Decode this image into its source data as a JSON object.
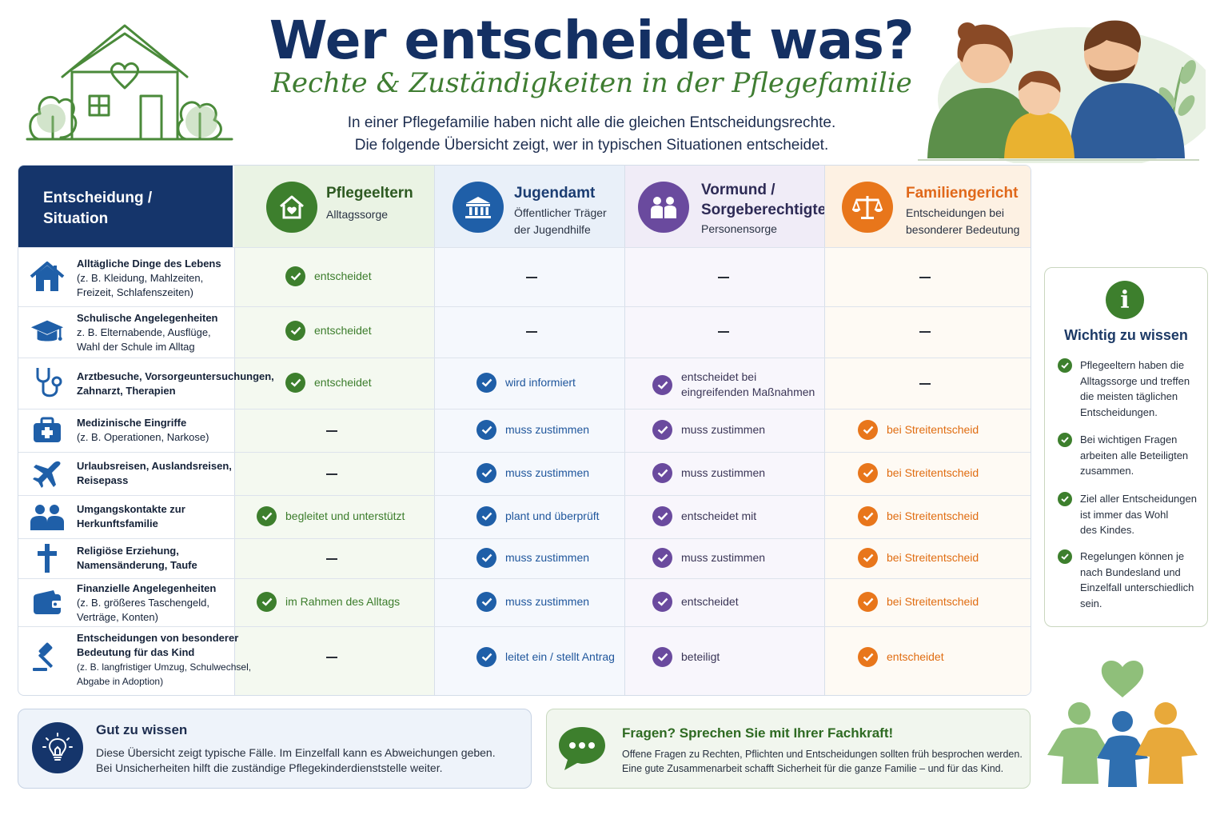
{
  "header": {
    "title": "Wer entscheidet was?",
    "subtitle": "Rechte & Zuständigkeiten in der Pflegefamilie",
    "intro_line1": "In einer Pflegefamilie haben nicht alle die gleichen Entscheidungsrechte.",
    "intro_line2": "Die folgende Übersicht zeigt, wer in typischen Situationen entscheidet."
  },
  "table": {
    "situation_header_line1": "Entscheidung /",
    "situation_header_line2": "Situation",
    "roles": [
      {
        "name": "Pflegeeltern",
        "sub1": "Alltagssorge",
        "sub2": "",
        "icon": "house-heart-icon",
        "color": "#3d7f2d"
      },
      {
        "name": "Jugendamt",
        "sub1": "Öffentlicher Träger",
        "sub2": "der Jugendhilfe",
        "icon": "building-icon",
        "color": "#1f5fa8"
      },
      {
        "name_line1": "Vormund /",
        "name_line2": "Sorgeberechtigte",
        "sub1": "Personensorge",
        "icon": "people-icon",
        "color": "#6a4a9e"
      },
      {
        "name": "Familiengericht",
        "sub1": "Entscheidungen bei",
        "sub2": "besonderer Bedeutung",
        "icon": "scales-icon",
        "color": "#e8761b"
      }
    ],
    "rows": [
      {
        "title": "Alltägliche Dinge des Lebens",
        "detail1": "(z. B. Kleidung, Mahlzeiten,",
        "detail2": "Freizeit, Schlafenszeiten)",
        "icon": "house-icon",
        "cells": [
          "entscheidet",
          "",
          "",
          ""
        ]
      },
      {
        "title": "Schulische Angelegenheiten",
        "detail1": "z. B. Elternabende, Ausflüge,",
        "detail2": "Wahl der Schule im Alltag",
        "icon": "graduation-cap-icon",
        "cells": [
          "entscheidet",
          "",
          "",
          ""
        ]
      },
      {
        "title": "Arztbesuche, Vorsorgeuntersuchungen,",
        "title2": "Zahnarzt, Therapien",
        "icon": "stethoscope-icon",
        "cells": [
          "entscheidet",
          "wird informiert",
          "entscheidet bei|eingreifenden Maßnahmen",
          ""
        ]
      },
      {
        "title": "Medizinische Eingriffe",
        "detail1": "(z. B. Operationen, Narkose)",
        "icon": "medical-bag-icon",
        "cells": [
          "",
          "muss zustimmen",
          "muss zustimmen",
          "bei Streitentscheid"
        ]
      },
      {
        "title": "Urlaubsreisen, Auslandsreisen,",
        "title2": "Reisepass",
        "icon": "airplane-icon",
        "cells": [
          "",
          "muss zustimmen",
          "muss zustimmen",
          "bei Streitentscheid"
        ]
      },
      {
        "title": "Umgangskontakte zur",
        "title2": "Herkunftsfamilie",
        "icon": "family-icon",
        "cells": [
          "begleitet und unterstützt",
          "plant und überprüft",
          "entscheidet mit",
          "bei Streitentscheid"
        ]
      },
      {
        "title": "Religiöse Erziehung,",
        "title2": "Namensänderung, Taufe",
        "icon": "cross-icon",
        "cells": [
          "",
          "muss zustimmen",
          "muss zustimmen",
          "bei Streitentscheid"
        ]
      },
      {
        "title": "Finanzielle Angelegenheiten",
        "detail1": "(z. B. größeres Taschengeld,",
        "detail2": "Verträge, Konten)",
        "icon": "wallet-icon",
        "cells": [
          "im Rahmen des Alltags",
          "muss zustimmen",
          "entscheidet",
          "bei Streitentscheid"
        ]
      },
      {
        "title": "Entscheidungen von besonderer",
        "title2": "Bedeutung für das Kind",
        "detail1": "(z. B. langfristiger Umzug, Schulwechsel,",
        "detail2": "Abgabe in Adoption)",
        "icon": "gavel-icon",
        "cells": [
          "",
          "leitet ein / stellt Antrag",
          "beteiligt",
          "entscheidet"
        ]
      }
    ],
    "empty_marker": "–"
  },
  "info": {
    "title": "Wichtig zu wissen",
    "icon": "info-icon",
    "items": [
      [
        "Pflegeeltern haben die",
        "Alltagssorge und treffen",
        "die meisten täglichen",
        "Entscheidungen."
      ],
      [
        "Bei wichtigen Fragen",
        "arbeiten alle Beteiligten",
        "zusammen."
      ],
      [
        "Ziel aller Entscheidungen",
        "ist immer das Wohl",
        "des Kindes."
      ],
      [
        "Regelungen können je",
        "nach Bundesland und",
        "Einzelfall unterschiedlich",
        "sein."
      ]
    ]
  },
  "gut": {
    "title": "Gut zu wissen",
    "line1": "Diese Übersicht zeigt typische Fälle. Im Einzelfall kann es Abweichungen geben.",
    "line2": "Bei Unsicherheiten hilft die zuständige Pflegekinderdienststelle weiter.",
    "icon": "lightbulb-icon"
  },
  "fragen": {
    "title": "Fragen? Sprechen Sie mit Ihrer Fachkraft!",
    "line1": "Offene Fragen zu Rechten, Pflichten und Entscheidungen sollten früh besprochen werden.",
    "line2": "Eine gute Zusammenarbeit schafft Sicherheit für die ganze Familie – und für das Kind.",
    "icon": "speech-bubble-icon"
  },
  "colors": {
    "navy": "#15356b",
    "green": "#3d7f2d",
    "blue": "#1f5fa8",
    "purple": "#6a4a9e",
    "orange": "#e8761b"
  }
}
